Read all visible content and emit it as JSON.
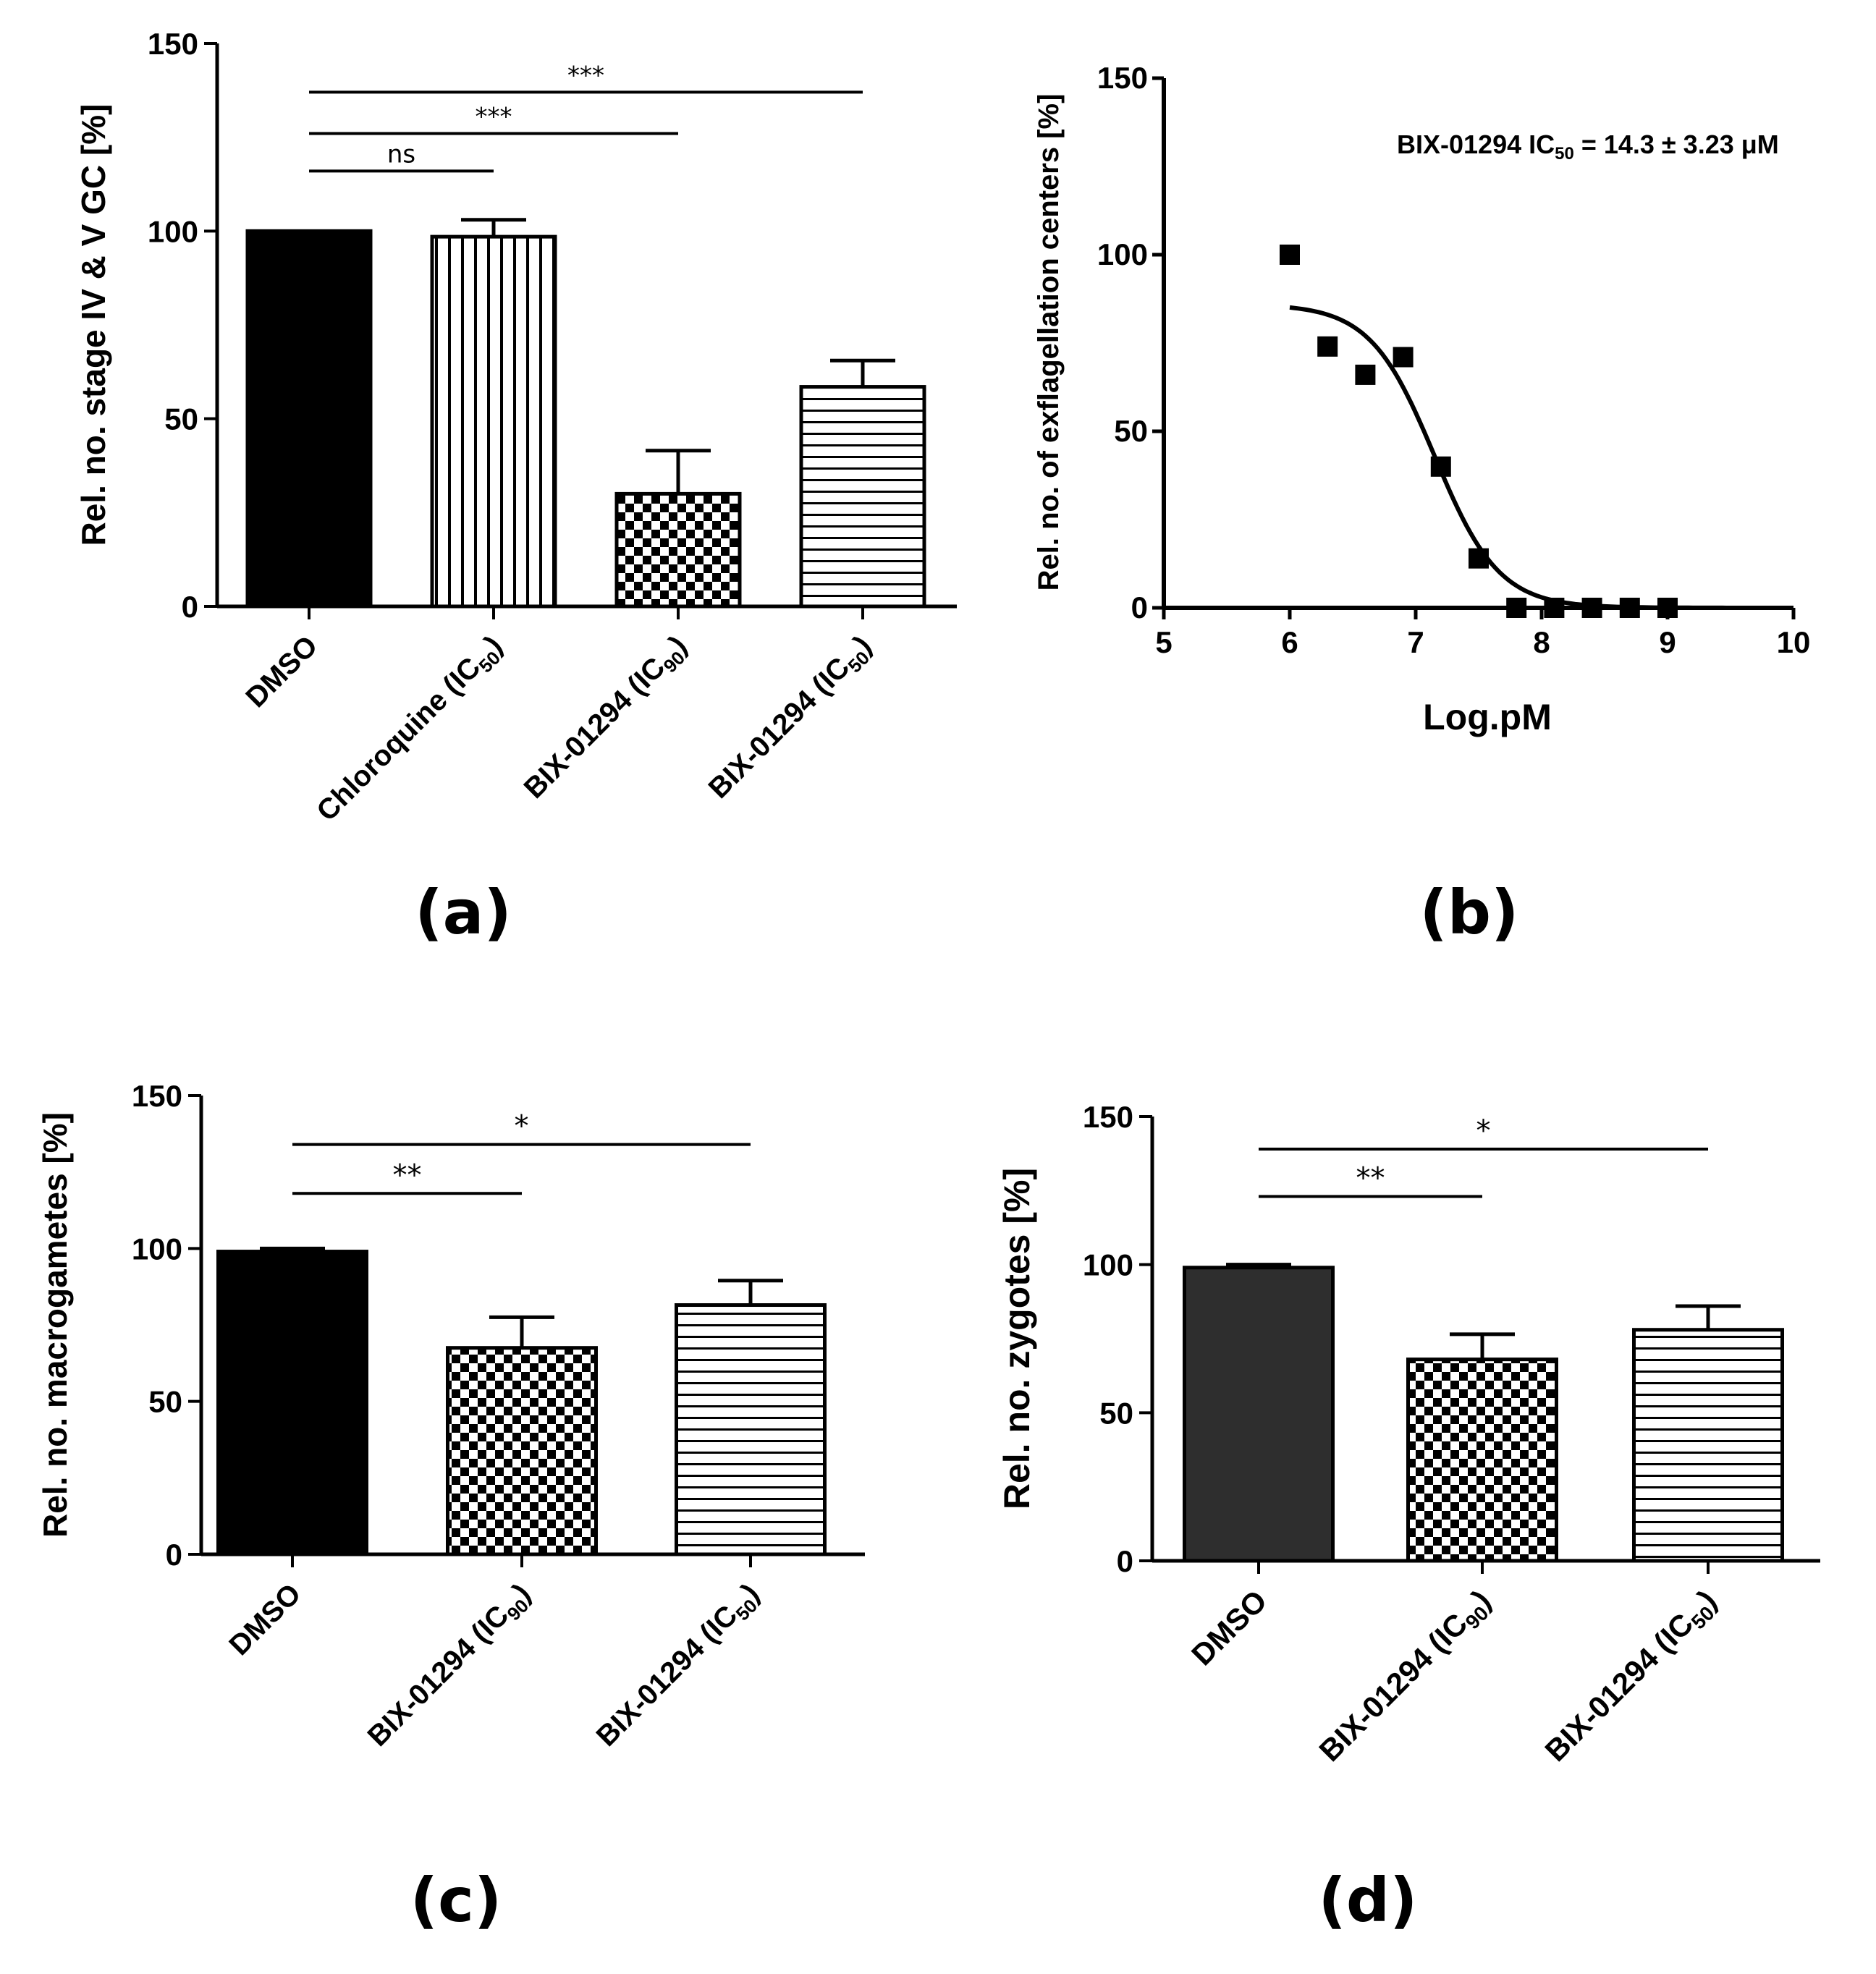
{
  "figure": {
    "panels": [
      {
        "id": "a",
        "label": "(a)"
      },
      {
        "id": "b",
        "label": "(b)"
      },
      {
        "id": "c",
        "label": "(c)"
      },
      {
        "id": "d",
        "label": "(d)"
      }
    ]
  },
  "colors": {
    "ink": "#000000",
    "bar_dark": "#2e2e2e"
  },
  "chart_data": [
    {
      "id": "a",
      "type": "bar",
      "ylabel": "Rel. no. stage IV & V GC [%]",
      "ylim": [
        0,
        150
      ],
      "yticks": [
        0,
        50,
        100,
        150
      ],
      "categories": [
        {
          "main": "DMSO",
          "sub": "",
          "tail": ""
        },
        {
          "main": "Chloroquine (IC",
          "sub": "50",
          "tail": ")"
        },
        {
          "main": "BIX-01294 (IC",
          "sub": "90",
          "tail": ")"
        },
        {
          "main": "BIX-01294 (IC",
          "sub": "50",
          "tail": ")"
        }
      ],
      "values": [
        100,
        98.5,
        30,
        58.5
      ],
      "errors": [
        0,
        4.5,
        11.5,
        7
      ],
      "patterns": [
        "solid-black",
        "vertical-lines",
        "checker",
        "horizontal-lines"
      ],
      "significance": [
        {
          "from": 0,
          "to": 1,
          "label": "ns",
          "y": 116
        },
        {
          "from": 0,
          "to": 2,
          "label": "***",
          "y": 126
        },
        {
          "from": 0,
          "to": 3,
          "label": "***",
          "y": 137
        }
      ]
    },
    {
      "id": "b",
      "type": "scatter",
      "xlabel": "Log.pM",
      "ylabel": "Rel. no. of exflagellation centers [%]",
      "xlim": [
        5,
        10
      ],
      "ylim": [
        0,
        150
      ],
      "xticks": [
        5,
        6,
        7,
        8,
        9,
        10
      ],
      "yticks": [
        0,
        50,
        100,
        150
      ],
      "annotation": {
        "pre": "BIX-01294 IC",
        "sub": "50",
        "post": " = 14.3 ± 3.23 μM"
      },
      "points": [
        {
          "x": 6.0,
          "y": 100
        },
        {
          "x": 6.3,
          "y": 74
        },
        {
          "x": 6.6,
          "y": 66
        },
        {
          "x": 6.9,
          "y": 71
        },
        {
          "x": 7.2,
          "y": 40
        },
        {
          "x": 7.5,
          "y": 14
        },
        {
          "x": 7.8,
          "y": 0
        },
        {
          "x": 8.1,
          "y": 0
        },
        {
          "x": 8.4,
          "y": 0
        },
        {
          "x": 8.7,
          "y": 0
        },
        {
          "x": 9.0,
          "y": 0
        }
      ],
      "fit": {
        "top": 86,
        "bottom": 0,
        "log_ic50": 7.15,
        "hill": 1.7,
        "x_start": 6.0,
        "x_end": 10.0
      }
    },
    {
      "id": "c",
      "type": "bar",
      "ylabel": "Rel. no. macrogametes [%]",
      "ylim": [
        0,
        150
      ],
      "yticks": [
        0,
        50,
        100,
        150
      ],
      "categories": [
        {
          "main": "DMSO",
          "sub": "",
          "tail": ""
        },
        {
          "main": "BIX-01294 (IC",
          "sub": "90",
          "tail": ")"
        },
        {
          "main": "BIX-01294 (IC",
          "sub": "50",
          "tail": ")"
        }
      ],
      "values": [
        99,
        67.5,
        81.5
      ],
      "errors": [
        1,
        10,
        8
      ],
      "patterns": [
        "solid-black",
        "checker",
        "horizontal-lines"
      ],
      "significance": [
        {
          "from": 0,
          "to": 1,
          "label": "**",
          "y": 118
        },
        {
          "from": 0,
          "to": 2,
          "label": "*",
          "y": 134
        }
      ]
    },
    {
      "id": "d",
      "type": "bar",
      "ylabel": "Rel. no. zygotes [%]",
      "ylim": [
        0,
        150
      ],
      "yticks": [
        0,
        50,
        100,
        150
      ],
      "categories": [
        {
          "main": "DMSO",
          "sub": "",
          "tail": ""
        },
        {
          "main": "BIX-01294 (IC",
          "sub": "90",
          "tail": ")"
        },
        {
          "main": "BIX-01294 (IC",
          "sub": "50",
          "tail": ")"
        }
      ],
      "values": [
        99,
        68,
        78
      ],
      "errors": [
        1,
        8.5,
        8
      ],
      "patterns": [
        "solid-dark",
        "checker",
        "horizontal-lines"
      ],
      "significance": [
        {
          "from": 0,
          "to": 1,
          "label": "**",
          "y": 123
        },
        {
          "from": 0,
          "to": 2,
          "label": "*",
          "y": 139
        }
      ]
    }
  ]
}
